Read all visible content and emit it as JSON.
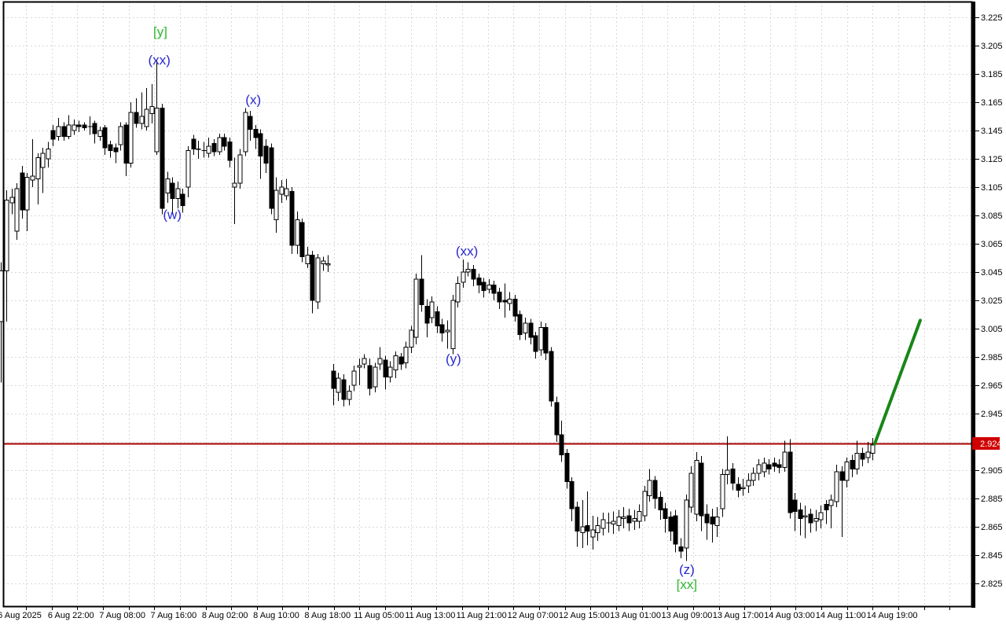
{
  "window": {
    "background": "#ffffff"
  },
  "chart_data": {
    "type": "candlestick",
    "title": "",
    "price_axis": {
      "position": "right",
      "min": 2.825,
      "max": 3.225,
      "tick_step": 0.02,
      "visible_tick_labels": [
        "3.225",
        "3.205",
        "3.185",
        "3.165",
        "3.145",
        "3.125",
        "3.105",
        "3.085",
        "3.065",
        "3.045",
        "3.025",
        "3.005",
        "2.985",
        "2.965",
        "2.945",
        "2.905",
        "2.885",
        "2.865",
        "2.845",
        "2.825"
      ]
    },
    "time_axis": {
      "tick_labels": [
        "6 Aug 2025",
        "6 Aug 22:00",
        "7 Aug 08:00",
        "7 Aug 16:00",
        "8 Aug 02:00",
        "8 Aug 10:00",
        "8 Aug 18:00",
        "11 Aug 05:00",
        "11 Aug 13:00",
        "11 Aug 21:00",
        "12 Aug 07:00",
        "12 Aug 15:00",
        "13 Aug 01:00",
        "13 Aug 09:00",
        "13 Aug 17:00",
        "14 Aug 03:00",
        "14 Aug 11:00",
        "14 Aug 19:00"
      ]
    },
    "bid_price_line": {
      "price": 2.924,
      "label": "2.924",
      "line_color": "#a80000",
      "tag_color": "#d10000",
      "tag_text_color": "#ffffff"
    },
    "annotations": {
      "wave_labels": [
        {
          "text": "[y]",
          "bar": 30.7,
          "price": 3.215,
          "color": "#2eb82e"
        },
        {
          "text": "(xx)",
          "bar": 30.5,
          "price": 3.195,
          "color": "#2828d2"
        },
        {
          "text": "(x)",
          "bar": 48.6,
          "price": 3.167,
          "color": "#2828d2"
        },
        {
          "text": "(w)",
          "bar": 33.0,
          "price": 3.086,
          "color": "#2828d2"
        },
        {
          "text": "(xx)",
          "bar": 89.8,
          "price": 3.06,
          "color": "#2828d2"
        },
        {
          "text": "(y)",
          "bar": 87.2,
          "price": 2.984,
          "color": "#2828d2"
        },
        {
          "text": "(z)",
          "bar": 132.2,
          "price": 2.835,
          "color": "#2828d2"
        },
        {
          "text": "[xx]",
          "bar": 132.2,
          "price": 2.8245,
          "color": "#2eb82e"
        }
      ],
      "trendline": {
        "bar_start": 168.4,
        "price_start": 2.9235,
        "bar_end": 177.2,
        "price_end": 3.011,
        "color": "#178717",
        "width": 4
      }
    },
    "style": {
      "up_fill": "#ffffff",
      "down_fill": "#000000",
      "outline": "#000000",
      "grid_color": "#d8d8d8",
      "frame_color": "#000000",
      "axis_text_color": "#000000"
    },
    "series": {
      "name": "OHLC",
      "format": [
        "open",
        "high",
        "low",
        "close"
      ],
      "candles": [
        [
          3.01,
          3.052,
          2.967,
          3.046
        ],
        [
          3.046,
          3.103,
          3.01,
          3.096
        ],
        [
          3.094,
          3.104,
          3.086,
          3.098
        ],
        [
          3.074,
          3.108,
          3.068,
          3.104
        ],
        [
          3.115,
          3.12,
          3.083,
          3.089
        ],
        [
          3.089,
          3.115,
          3.074,
          3.112
        ],
        [
          3.11,
          3.139,
          3.105,
          3.113
        ],
        [
          3.111,
          3.129,
          3.093,
          3.126
        ],
        [
          3.119,
          3.133,
          3.101,
          3.129
        ],
        [
          3.125,
          3.137,
          3.119,
          3.132
        ],
        [
          3.145,
          3.149,
          3.134,
          3.139
        ],
        [
          3.141,
          3.154,
          3.138,
          3.148
        ],
        [
          3.148,
          3.151,
          3.138,
          3.141
        ],
        [
          3.141,
          3.156,
          3.139,
          3.149
        ],
        [
          3.145,
          3.153,
          3.142,
          3.149
        ],
        [
          3.149,
          3.152,
          3.144,
          3.148
        ],
        [
          3.149,
          3.151,
          3.145,
          3.147
        ],
        [
          3.148,
          3.155,
          3.142,
          3.148
        ],
        [
          3.15,
          3.152,
          3.136,
          3.143
        ],
        [
          3.141,
          3.148,
          3.138,
          3.145
        ],
        [
          3.147,
          3.149,
          3.128,
          3.133
        ],
        [
          3.135,
          3.138,
          3.126,
          3.131
        ],
        [
          3.133,
          3.136,
          3.122,
          3.13
        ],
        [
          3.135,
          3.151,
          3.131,
          3.148
        ],
        [
          3.149,
          3.151,
          3.113,
          3.122
        ],
        [
          3.122,
          3.165,
          3.119,
          3.158
        ],
        [
          3.158,
          3.168,
          3.147,
          3.15
        ],
        [
          3.15,
          3.172,
          3.146,
          3.155
        ],
        [
          3.148,
          3.175,
          3.145,
          3.16
        ],
        [
          3.157,
          3.178,
          3.15,
          3.162
        ],
        [
          3.13,
          3.195,
          3.128,
          3.161
        ],
        [
          3.161,
          3.164,
          3.086,
          3.09
        ],
        [
          3.101,
          3.116,
          3.094,
          3.111
        ],
        [
          3.108,
          3.112,
          3.086,
          3.097
        ],
        [
          3.097,
          3.109,
          3.09,
          3.104
        ],
        [
          3.1,
          3.104,
          3.087,
          3.092
        ],
        [
          3.105,
          3.134,
          3.098,
          3.131
        ],
        [
          3.139,
          3.142,
          3.128,
          3.132
        ],
        [
          3.132,
          3.138,
          3.125,
          3.132
        ],
        [
          3.131,
          3.137,
          3.126,
          3.131
        ],
        [
          3.129,
          3.14,
          3.126,
          3.134
        ],
        [
          3.136,
          3.139,
          3.127,
          3.13
        ],
        [
          3.13,
          3.143,
          3.128,
          3.14
        ],
        [
          3.14,
          3.143,
          3.131,
          3.134
        ],
        [
          3.137,
          3.14,
          3.119,
          3.124
        ],
        [
          3.105,
          3.126,
          3.079,
          3.108
        ],
        [
          3.108,
          3.132,
          3.104,
          3.128
        ],
        [
          3.13,
          3.161,
          3.127,
          3.158
        ],
        [
          3.155,
          3.159,
          3.138,
          3.146
        ],
        [
          3.146,
          3.149,
          3.132,
          3.14
        ],
        [
          3.143,
          3.146,
          3.111,
          3.127
        ],
        [
          3.134,
          3.139,
          3.115,
          3.122
        ],
        [
          3.133,
          3.136,
          3.086,
          3.09
        ],
        [
          3.082,
          3.112,
          3.073,
          3.103
        ],
        [
          3.1,
          3.11,
          3.094,
          3.105
        ],
        [
          3.099,
          3.111,
          3.096,
          3.104
        ],
        [
          3.102,
          3.105,
          3.058,
          3.064
        ],
        [
          3.064,
          3.088,
          3.058,
          3.082
        ],
        [
          3.08,
          3.083,
          3.052,
          3.056
        ],
        [
          3.051,
          3.063,
          3.048,
          3.057
        ],
        [
          3.057,
          3.06,
          3.016,
          3.025
        ],
        [
          3.024,
          3.058,
          3.019,
          3.055
        ],
        [
          3.051,
          3.056,
          3.046,
          3.053
        ],
        [
          3.05,
          3.057,
          3.045,
          3.051
        ],
        [
          2.975,
          2.98,
          2.951,
          2.963
        ],
        [
          2.96,
          2.974,
          2.954,
          2.97
        ],
        [
          2.969,
          2.973,
          2.95,
          2.955
        ],
        [
          2.955,
          2.965,
          2.951,
          2.961
        ],
        [
          2.965,
          2.979,
          2.961,
          2.975
        ],
        [
          2.978,
          2.984,
          2.965,
          2.979
        ],
        [
          2.98,
          2.987,
          2.977,
          2.984
        ],
        [
          2.979,
          2.984,
          2.958,
          2.963
        ],
        [
          2.964,
          2.981,
          2.96,
          2.978
        ],
        [
          2.98,
          2.992,
          2.976,
          2.984
        ],
        [
          2.983,
          2.986,
          2.962,
          2.971
        ],
        [
          2.971,
          2.982,
          2.967,
          2.978
        ],
        [
          2.976,
          2.989,
          2.97,
          2.986
        ],
        [
          2.985,
          2.988,
          2.976,
          2.98
        ],
        [
          2.981,
          2.996,
          2.977,
          2.992
        ],
        [
          2.992,
          3.007,
          2.988,
          3.004
        ],
        [
          2.999,
          3.044,
          2.994,
          3.04
        ],
        [
          3.04,
          3.057,
          3.017,
          3.022
        ],
        [
          3.021,
          3.026,
          2.999,
          3.009
        ],
        [
          3.013,
          3.028,
          3.009,
          3.024
        ],
        [
          3.017,
          3.021,
          3.002,
          3.007
        ],
        [
          3.008,
          3.012,
          2.996,
          3.002
        ],
        [
          3.003,
          3.011,
          2.991,
          3.004
        ],
        [
          2.991,
          3.029,
          2.987,
          3.025
        ],
        [
          3.024,
          3.042,
          3.02,
          3.037
        ],
        [
          3.038,
          3.054,
          3.034,
          3.045
        ],
        [
          3.045,
          3.052,
          3.042,
          3.047
        ],
        [
          3.047,
          3.05,
          3.035,
          3.04
        ],
        [
          3.041,
          3.044,
          3.03,
          3.036
        ],
        [
          3.038,
          3.041,
          3.027,
          3.032
        ],
        [
          3.033,
          3.04,
          3.03,
          3.036
        ],
        [
          3.036,
          3.039,
          3.025,
          3.03
        ],
        [
          3.031,
          3.034,
          3.019,
          3.024
        ],
        [
          3.025,
          3.037,
          3.013,
          3.024
        ],
        [
          3.023,
          3.031,
          3.018,
          3.026
        ],
        [
          3.026,
          3.029,
          3.01,
          3.014
        ],
        [
          3.015,
          3.018,
          2.997,
          3.001
        ],
        [
          3.002,
          3.013,
          2.997,
          3.009
        ],
        [
          3.009,
          3.012,
          2.994,
          2.999
        ],
        [
          3.0,
          3.003,
          2.984,
          2.989
        ],
        [
          2.99,
          3.01,
          2.986,
          3.006
        ],
        [
          3.006,
          3.009,
          2.983,
          2.988
        ],
        [
          2.989,
          2.992,
          2.95,
          2.954
        ],
        [
          2.953,
          2.957,
          2.925,
          2.93
        ],
        [
          2.93,
          2.94,
          2.911,
          2.916
        ],
        [
          2.917,
          2.92,
          2.892,
          2.897
        ],
        [
          2.897,
          2.9,
          2.869,
          2.878
        ],
        [
          2.879,
          2.883,
          2.851,
          2.862
        ],
        [
          2.861,
          2.884,
          2.85,
          2.865
        ],
        [
          2.866,
          2.89,
          2.852,
          2.862
        ],
        [
          2.858,
          2.873,
          2.849,
          2.863
        ],
        [
          2.861,
          2.872,
          2.855,
          2.866
        ],
        [
          2.864,
          2.875,
          2.859,
          2.87
        ],
        [
          2.868,
          2.875,
          2.861,
          2.868
        ],
        [
          2.867,
          2.876,
          2.86,
          2.869
        ],
        [
          2.866,
          2.877,
          2.862,
          2.872
        ],
        [
          2.871,
          2.879,
          2.864,
          2.872
        ],
        [
          2.873,
          2.878,
          2.862,
          2.868
        ],
        [
          2.869,
          2.877,
          2.863,
          2.871
        ],
        [
          2.869,
          2.881,
          2.864,
          2.876
        ],
        [
          2.873,
          2.894,
          2.869,
          2.89
        ],
        [
          2.887,
          2.906,
          2.883,
          2.898
        ],
        [
          2.898,
          2.901,
          2.878,
          2.885
        ],
        [
          2.886,
          2.89,
          2.87,
          2.877
        ],
        [
          2.878,
          2.882,
          2.861,
          2.871
        ],
        [
          2.872,
          2.876,
          2.855,
          2.862
        ],
        [
          2.873,
          2.877,
          2.847,
          2.853
        ],
        [
          2.851,
          2.857,
          2.843,
          2.848
        ],
        [
          2.85,
          2.888,
          2.841,
          2.884
        ],
        [
          2.879,
          2.908,
          2.875,
          2.903
        ],
        [
          2.874,
          2.918,
          2.869,
          2.912
        ],
        [
          2.91,
          2.915,
          2.862,
          2.873
        ],
        [
          2.874,
          2.881,
          2.856,
          2.868
        ],
        [
          2.872,
          2.878,
          2.854,
          2.867
        ],
        [
          2.866,
          2.879,
          2.858,
          2.872
        ],
        [
          2.878,
          2.906,
          2.872,
          2.902
        ],
        [
          2.902,
          2.929,
          2.895,
          2.905
        ],
        [
          2.906,
          2.91,
          2.891,
          2.896
        ],
        [
          2.895,
          2.9,
          2.886,
          2.891
        ],
        [
          2.892,
          2.899,
          2.887,
          2.893
        ],
        [
          2.894,
          2.903,
          2.889,
          2.898
        ],
        [
          2.898,
          2.907,
          2.894,
          2.903
        ],
        [
          2.903,
          2.913,
          2.898,
          2.909
        ],
        [
          2.904,
          2.914,
          2.9,
          2.91
        ],
        [
          2.909,
          2.913,
          2.902,
          2.906
        ],
        [
          2.91,
          2.914,
          2.904,
          2.908
        ],
        [
          2.909,
          2.913,
          2.903,
          2.907
        ],
        [
          2.907,
          2.926,
          2.904,
          2.918
        ],
        [
          2.918,
          2.927,
          2.871,
          2.875
        ],
        [
          2.884,
          2.889,
          2.862,
          2.876
        ],
        [
          2.877,
          2.882,
          2.859,
          2.871
        ],
        [
          2.872,
          2.88,
          2.857,
          2.873
        ],
        [
          2.874,
          2.878,
          2.861,
          2.868
        ],
        [
          2.869,
          2.877,
          2.862,
          2.871
        ],
        [
          2.87,
          2.88,
          2.864,
          2.875
        ],
        [
          2.881,
          2.884,
          2.867,
          2.877
        ],
        [
          2.88,
          2.888,
          2.864,
          2.884
        ],
        [
          2.883,
          2.909,
          2.879,
          2.904
        ],
        [
          2.904,
          2.908,
          2.858,
          2.898
        ],
        [
          2.898,
          2.914,
          2.893,
          2.911
        ],
        [
          2.912,
          2.916,
          2.9,
          2.906
        ],
        [
          2.906,
          2.926,
          2.902,
          2.917
        ],
        [
          2.917,
          2.921,
          2.908,
          2.913
        ],
        [
          2.914,
          2.925,
          2.91,
          2.918
        ],
        [
          2.917,
          2.928,
          2.912,
          2.923
        ]
      ]
    }
  }
}
